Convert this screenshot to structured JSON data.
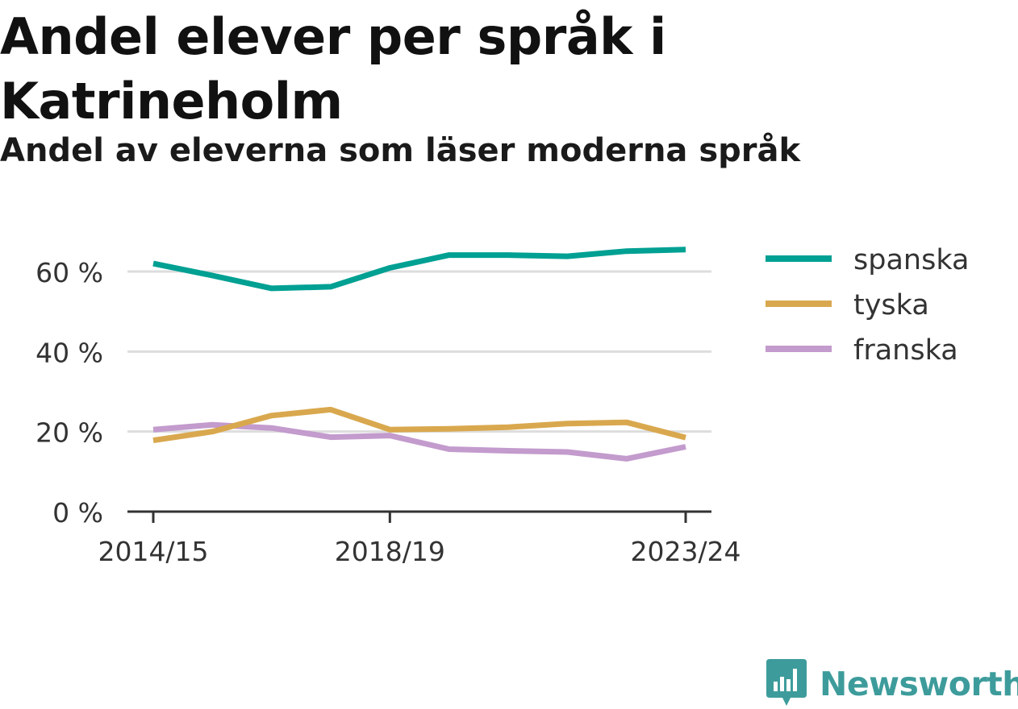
{
  "colors": {
    "spanska": "#00a093",
    "tyska": "#d9a84e",
    "franska": "#c39bcd",
    "brand": "#3d9c9b",
    "grid": "#dddddd",
    "axis": "#333333"
  },
  "brand": {
    "name": "Newsworthy",
    "icon": "bar-chart-bubble-icon"
  },
  "chart_data": {
    "type": "line",
    "title": "Andel elever per språk i Katrineholm",
    "subtitle": "Andel av eleverna som läser moderna språk",
    "x": [
      "2014/15",
      "2015/16",
      "2016/17",
      "2017/18",
      "2018/19",
      "2019/20",
      "2020/21",
      "2021/22",
      "2022/23",
      "2023/24"
    ],
    "x_tick_labels": [
      "2014/15",
      "2018/19",
      "2023/24"
    ],
    "y_ticks": [
      0,
      20,
      40,
      60
    ],
    "y_tick_labels": [
      "0 %",
      "20 %",
      "40 %",
      "60 %"
    ],
    "ylim": [
      0,
      70
    ],
    "grid": true,
    "legend": "right",
    "series": [
      {
        "name": "spanska",
        "values": [
          62.0,
          59.0,
          55.8,
          56.2,
          60.9,
          64.1,
          64.1,
          63.8,
          65.1,
          65.5
        ]
      },
      {
        "name": "tyska",
        "values": [
          17.8,
          20.0,
          24.0,
          25.5,
          20.5,
          20.7,
          21.1,
          22.0,
          22.3,
          18.5
        ]
      },
      {
        "name": "franska",
        "values": [
          20.5,
          21.7,
          20.9,
          18.6,
          19.0,
          15.6,
          15.2,
          14.9,
          13.2,
          16.2
        ]
      }
    ],
    "xlabel": "",
    "ylabel": ""
  }
}
